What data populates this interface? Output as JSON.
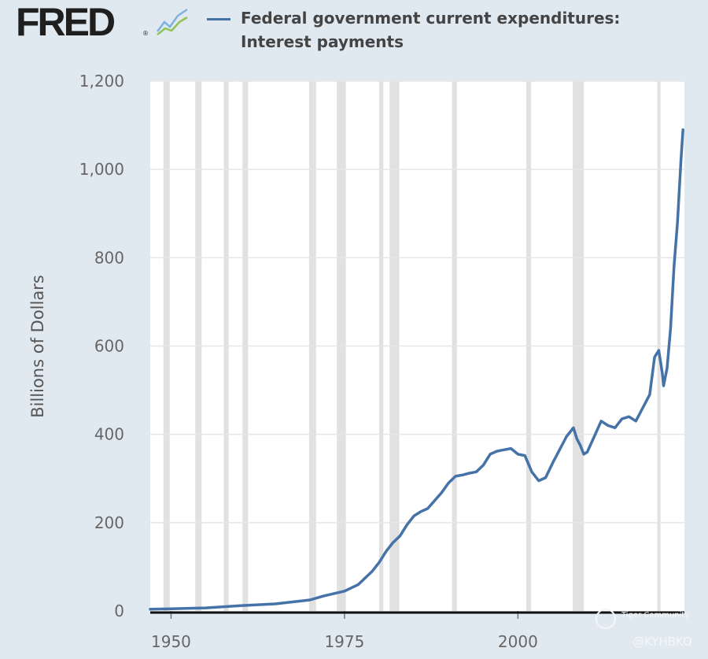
{
  "header": {
    "logo_text": "FRED",
    "logo_registered": "®",
    "logo_icon": "line-chart-icon",
    "legend_line1": "Federal government current expenditures:",
    "legend_line2": "Interest payments",
    "series_color": "#4572a7"
  },
  "watermark": {
    "line1": "Tiger Community",
    "line2": "@KYHBKO"
  },
  "chart_data": {
    "type": "line",
    "title": "Federal government current expenditures: Interest payments",
    "xlabel": "",
    "ylabel": "Billions of Dollars",
    "xlim": [
      1947,
      2024
    ],
    "ylim": [
      0,
      1200
    ],
    "yticks": [
      0,
      200,
      400,
      600,
      800,
      1000,
      1200
    ],
    "ytick_labels": [
      "0",
      "200",
      "400",
      "600",
      "800",
      "1,000",
      "1,200"
    ],
    "xticks": [
      1950,
      1975,
      2000
    ],
    "xtick_labels": [
      "1950",
      "1975",
      "2000"
    ],
    "recessions": [
      [
        1948.9,
        1949.8
      ],
      [
        1953.5,
        1954.4
      ],
      [
        1957.6,
        1958.3
      ],
      [
        1960.3,
        1961.1
      ],
      [
        1969.9,
        1970.9
      ],
      [
        1973.9,
        1975.2
      ],
      [
        1980.0,
        1980.6
      ],
      [
        1981.5,
        1982.9
      ],
      [
        1990.5,
        1991.2
      ],
      [
        2001.2,
        2001.9
      ],
      [
        2007.9,
        2009.5
      ],
      [
        2020.1,
        2020.4
      ]
    ],
    "series": [
      {
        "name": "Federal government current expenditures: Interest payments",
        "color": "#4572a7",
        "x": [
          1947,
          1950,
          1955,
          1960,
          1965,
          1970,
          1972,
          1975,
          1977,
          1979,
          1980,
          1981,
          1982,
          1983,
          1984,
          1985,
          1986,
          1987,
          1988,
          1989,
          1990,
          1991,
          1992,
          1993,
          1994,
          1995,
          1996,
          1997,
          1998,
          1999,
          2000,
          2001,
          2002,
          2003,
          2004,
          2005,
          2006,
          2007,
          2008,
          2008.5,
          2009,
          2009.5,
          2010,
          2011,
          2012,
          2013,
          2014,
          2015,
          2016,
          2017,
          2018,
          2019,
          2019.7,
          2020.3,
          2020.8,
          2021,
          2021.5,
          2022,
          2022.5,
          2023,
          2023.5,
          2023.8
        ],
        "values": [
          4,
          5,
          7,
          12,
          16,
          25,
          34,
          45,
          60,
          90,
          110,
          135,
          155,
          170,
          195,
          215,
          225,
          232,
          250,
          268,
          290,
          305,
          308,
          312,
          315,
          330,
          355,
          362,
          365,
          368,
          355,
          352,
          315,
          295,
          302,
          335,
          365,
          395,
          415,
          390,
          375,
          355,
          360,
          395,
          430,
          420,
          415,
          435,
          440,
          430,
          460,
          490,
          575,
          590,
          540,
          510,
          550,
          640,
          780,
          880,
          1020,
          1090
        ]
      }
    ]
  }
}
